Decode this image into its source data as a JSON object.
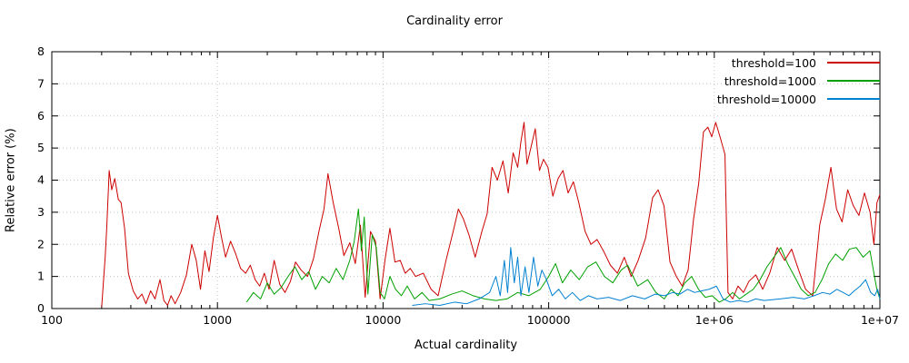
{
  "chart_data": {
    "type": "line",
    "title": "Cardinality error",
    "xlabel": "Actual cardinality",
    "ylabel": "Relative error (%)",
    "xscale": "log",
    "xlim": [
      100,
      10000000
    ],
    "ylim": [
      0,
      8
    ],
    "grid": true,
    "legend_position": "top-right",
    "axis_color": "#000000",
    "grid_color": "#c8c8c8",
    "xticks": {
      "values": [
        100,
        1000,
        10000,
        100000,
        1000000,
        10000000
      ],
      "labels": [
        "100",
        "1000",
        "10000",
        "100000",
        "1e+06",
        "1e+07"
      ]
    },
    "yticks": {
      "values": [
        0,
        1,
        2,
        3,
        4,
        5,
        6,
        7,
        8
      ],
      "labels": [
        "0",
        "1",
        "2",
        "3",
        "4",
        "5",
        "6",
        "7",
        "8"
      ]
    },
    "series": [
      {
        "name": "threshold=100",
        "color": "#cc0000",
        "points": [
          [
            200,
            0.05
          ],
          [
            210,
            1.6
          ],
          [
            215,
            2.6
          ],
          [
            222,
            4.3
          ],
          [
            230,
            3.7
          ],
          [
            240,
            4.05
          ],
          [
            252,
            3.4
          ],
          [
            262,
            3.3
          ],
          [
            275,
            2.5
          ],
          [
            290,
            1.1
          ],
          [
            310,
            0.55
          ],
          [
            330,
            0.3
          ],
          [
            350,
            0.45
          ],
          [
            370,
            0.15
          ],
          [
            395,
            0.55
          ],
          [
            420,
            0.3
          ],
          [
            450,
            0.9
          ],
          [
            475,
            0.25
          ],
          [
            500,
            0.1
          ],
          [
            525,
            0.4
          ],
          [
            555,
            0.15
          ],
          [
            600,
            0.5
          ],
          [
            650,
            1.05
          ],
          [
            700,
            2.0
          ],
          [
            745,
            1.5
          ],
          [
            790,
            0.6
          ],
          [
            840,
            1.8
          ],
          [
            890,
            1.15
          ],
          [
            945,
            2.2
          ],
          [
            1000,
            2.9
          ],
          [
            1060,
            2.2
          ],
          [
            1120,
            1.6
          ],
          [
            1200,
            2.1
          ],
          [
            1290,
            1.7
          ],
          [
            1380,
            1.25
          ],
          [
            1480,
            1.1
          ],
          [
            1580,
            1.35
          ],
          [
            1690,
            0.9
          ],
          [
            1800,
            0.7
          ],
          [
            1920,
            1.1
          ],
          [
            2050,
            0.6
          ],
          [
            2200,
            1.5
          ],
          [
            2380,
            0.75
          ],
          [
            2560,
            0.5
          ],
          [
            2760,
            0.85
          ],
          [
            2960,
            1.45
          ],
          [
            3200,
            1.2
          ],
          [
            3500,
            1.0
          ],
          [
            3800,
            1.55
          ],
          [
            4100,
            2.4
          ],
          [
            4400,
            3.1
          ],
          [
            4650,
            4.2
          ],
          [
            5000,
            3.3
          ],
          [
            5400,
            2.5
          ],
          [
            5800,
            1.65
          ],
          [
            6300,
            2.05
          ],
          [
            6800,
            1.4
          ],
          [
            7300,
            2.6
          ],
          [
            7800,
            0.35
          ],
          [
            8400,
            2.4
          ],
          [
            9000,
            2.1
          ],
          [
            9600,
            0.3
          ],
          [
            10300,
            1.55
          ],
          [
            11000,
            2.5
          ],
          [
            11800,
            1.45
          ],
          [
            12700,
            1.5
          ],
          [
            13600,
            1.1
          ],
          [
            14600,
            1.25
          ],
          [
            15700,
            1.0
          ],
          [
            17500,
            1.1
          ],
          [
            19500,
            0.6
          ],
          [
            21500,
            0.4
          ],
          [
            24000,
            1.5
          ],
          [
            26500,
            2.4
          ],
          [
            28500,
            3.1
          ],
          [
            30500,
            2.8
          ],
          [
            33000,
            2.3
          ],
          [
            36000,
            1.6
          ],
          [
            39500,
            2.4
          ],
          [
            42500,
            2.95
          ],
          [
            45500,
            4.4
          ],
          [
            49000,
            4.0
          ],
          [
            53000,
            4.6
          ],
          [
            57000,
            3.6
          ],
          [
            61000,
            4.85
          ],
          [
            65000,
            4.4
          ],
          [
            68000,
            5.2
          ],
          [
            71000,
            5.8
          ],
          [
            74000,
            4.5
          ],
          [
            78000,
            5.0
          ],
          [
            83000,
            5.6
          ],
          [
            88000,
            4.3
          ],
          [
            93000,
            4.65
          ],
          [
            99000,
            4.4
          ],
          [
            106000,
            3.5
          ],
          [
            114000,
            4.05
          ],
          [
            122000,
            4.3
          ],
          [
            131000,
            3.6
          ],
          [
            141000,
            3.95
          ],
          [
            152000,
            3.3
          ],
          [
            166000,
            2.4
          ],
          [
            180000,
            2.0
          ],
          [
            196000,
            2.15
          ],
          [
            214000,
            1.8
          ],
          [
            236000,
            1.35
          ],
          [
            260000,
            1.1
          ],
          [
            286000,
            1.6
          ],
          [
            315000,
            1.0
          ],
          [
            347000,
            1.5
          ],
          [
            385000,
            2.2
          ],
          [
            424000,
            3.45
          ],
          [
            458000,
            3.7
          ],
          [
            497000,
            3.2
          ],
          [
            540000,
            1.45
          ],
          [
            590000,
            1.0
          ],
          [
            640000,
            0.7
          ],
          [
            695000,
            1.2
          ],
          [
            750000,
            2.8
          ],
          [
            805000,
            3.9
          ],
          [
            860000,
            5.5
          ],
          [
            915000,
            5.65
          ],
          [
            965000,
            5.35
          ],
          [
            1020000,
            5.8
          ],
          [
            1090000,
            5.3
          ],
          [
            1160000,
            4.8
          ],
          [
            1210000,
            0.5
          ],
          [
            1290000,
            0.3
          ],
          [
            1390000,
            0.7
          ],
          [
            1500000,
            0.5
          ],
          [
            1620000,
            0.85
          ],
          [
            1780000,
            1.05
          ],
          [
            1960000,
            0.6
          ],
          [
            2160000,
            1.1
          ],
          [
            2400000,
            1.9
          ],
          [
            2660000,
            1.5
          ],
          [
            2930000,
            1.85
          ],
          [
            3230000,
            1.2
          ],
          [
            3560000,
            0.6
          ],
          [
            3930000,
            0.4
          ],
          [
            4330000,
            2.6
          ],
          [
            4680000,
            3.4
          ],
          [
            5060000,
            4.4
          ],
          [
            5470000,
            3.1
          ],
          [
            5910000,
            2.7
          ],
          [
            6390000,
            3.7
          ],
          [
            6910000,
            3.2
          ],
          [
            7470000,
            2.9
          ],
          [
            8070000,
            3.6
          ],
          [
            8720000,
            3.0
          ],
          [
            9200000,
            2.0
          ],
          [
            9600000,
            3.3
          ],
          [
            10000000,
            3.55
          ]
        ]
      },
      {
        "name": "threshold=1000",
        "color": "#00a000",
        "points": [
          [
            1500,
            0.2
          ],
          [
            1650,
            0.5
          ],
          [
            1820,
            0.3
          ],
          [
            2000,
            0.8
          ],
          [
            2200,
            0.45
          ],
          [
            2420,
            0.65
          ],
          [
            2670,
            1.0
          ],
          [
            2940,
            1.3
          ],
          [
            3230,
            0.9
          ],
          [
            3560,
            1.15
          ],
          [
            3910,
            0.6
          ],
          [
            4300,
            1.0
          ],
          [
            4730,
            0.8
          ],
          [
            5210,
            1.25
          ],
          [
            5730,
            0.9
          ],
          [
            6300,
            1.5
          ],
          [
            6700,
            2.1
          ],
          [
            7100,
            3.1
          ],
          [
            7400,
            1.8
          ],
          [
            7700,
            2.85
          ],
          [
            8100,
            0.45
          ],
          [
            8600,
            2.3
          ],
          [
            9100,
            1.9
          ],
          [
            9600,
            0.5
          ],
          [
            10200,
            0.3
          ],
          [
            11000,
            1.0
          ],
          [
            11900,
            0.6
          ],
          [
            12900,
            0.4
          ],
          [
            14000,
            0.7
          ],
          [
            15500,
            0.3
          ],
          [
            17200,
            0.5
          ],
          [
            19000,
            0.25
          ],
          [
            22000,
            0.3
          ],
          [
            26000,
            0.45
          ],
          [
            30000,
            0.55
          ],
          [
            35000,
            0.4
          ],
          [
            41000,
            0.3
          ],
          [
            48000,
            0.25
          ],
          [
            56000,
            0.3
          ],
          [
            65000,
            0.5
          ],
          [
            76000,
            0.4
          ],
          [
            89000,
            0.6
          ],
          [
            100000,
            1.0
          ],
          [
            110000,
            1.4
          ],
          [
            121000,
            0.8
          ],
          [
            136000,
            1.2
          ],
          [
            153000,
            0.9
          ],
          [
            172000,
            1.3
          ],
          [
            193000,
            1.45
          ],
          [
            217000,
            1.0
          ],
          [
            244000,
            0.8
          ],
          [
            274000,
            1.2
          ],
          [
            300000,
            1.35
          ],
          [
            345000,
            0.7
          ],
          [
            396000,
            0.9
          ],
          [
            444000,
            0.5
          ],
          [
            499000,
            0.3
          ],
          [
            549000,
            0.6
          ],
          [
            604000,
            0.4
          ],
          [
            664000,
            0.8
          ],
          [
            730000,
            1.0
          ],
          [
            803000,
            0.6
          ],
          [
            883000,
            0.35
          ],
          [
            971000,
            0.4
          ],
          [
            1070000,
            0.2
          ],
          [
            1170000,
            0.3
          ],
          [
            1290000,
            0.5
          ],
          [
            1420000,
            0.3
          ],
          [
            1560000,
            0.45
          ],
          [
            1720000,
            0.6
          ],
          [
            1890000,
            0.9
          ],
          [
            2080000,
            1.3
          ],
          [
            2290000,
            1.6
          ],
          [
            2520000,
            1.9
          ],
          [
            2770000,
            1.4
          ],
          [
            3050000,
            1.0
          ],
          [
            3350000,
            0.6
          ],
          [
            3690000,
            0.4
          ],
          [
            4060000,
            0.5
          ],
          [
            4470000,
            0.9
          ],
          [
            4910000,
            1.4
          ],
          [
            5400000,
            1.7
          ],
          [
            5950000,
            1.5
          ],
          [
            6540000,
            1.85
          ],
          [
            7200000,
            1.9
          ],
          [
            7920000,
            1.6
          ],
          [
            8710000,
            1.8
          ],
          [
            9200000,
            1.1
          ],
          [
            9580000,
            0.6
          ],
          [
            10000000,
            0.3
          ]
        ]
      },
      {
        "name": "threshold=10000",
        "color": "#0080d0",
        "points": [
          [
            15000,
            0.1
          ],
          [
            18000,
            0.15
          ],
          [
            22000,
            0.1
          ],
          [
            27000,
            0.2
          ],
          [
            32000,
            0.15
          ],
          [
            38000,
            0.3
          ],
          [
            44000,
            0.5
          ],
          [
            48000,
            1.0
          ],
          [
            51000,
            0.4
          ],
          [
            54000,
            1.5
          ],
          [
            56500,
            0.5
          ],
          [
            59000,
            1.9
          ],
          [
            62000,
            0.8
          ],
          [
            65000,
            1.6
          ],
          [
            68000,
            0.4
          ],
          [
            72000,
            1.3
          ],
          [
            76000,
            0.5
          ],
          [
            81000,
            1.6
          ],
          [
            86000,
            0.7
          ],
          [
            91000,
            1.2
          ],
          [
            97000,
            0.9
          ],
          [
            105000,
            0.4
          ],
          [
            115000,
            0.6
          ],
          [
            126000,
            0.3
          ],
          [
            139000,
            0.5
          ],
          [
            155000,
            0.25
          ],
          [
            174000,
            0.4
          ],
          [
            196000,
            0.3
          ],
          [
            230000,
            0.35
          ],
          [
            270000,
            0.25
          ],
          [
            320000,
            0.4
          ],
          [
            380000,
            0.3
          ],
          [
            440000,
            0.45
          ],
          [
            500000,
            0.4
          ],
          [
            560000,
            0.5
          ],
          [
            620000,
            0.45
          ],
          [
            690000,
            0.6
          ],
          [
            760000,
            0.5
          ],
          [
            840000,
            0.55
          ],
          [
            930000,
            0.6
          ],
          [
            1030000,
            0.7
          ],
          [
            1130000,
            0.3
          ],
          [
            1250000,
            0.2
          ],
          [
            1400000,
            0.25
          ],
          [
            1580000,
            0.2
          ],
          [
            1780000,
            0.3
          ],
          [
            2000000,
            0.25
          ],
          [
            2500000,
            0.3
          ],
          [
            3000000,
            0.35
          ],
          [
            3500000,
            0.3
          ],
          [
            4000000,
            0.4
          ],
          [
            4500000,
            0.5
          ],
          [
            5000000,
            0.45
          ],
          [
            5500000,
            0.6
          ],
          [
            6000000,
            0.5
          ],
          [
            6500000,
            0.4
          ],
          [
            7000000,
            0.55
          ],
          [
            7600000,
            0.7
          ],
          [
            8200000,
            0.9
          ],
          [
            8800000,
            0.5
          ],
          [
            9300000,
            0.4
          ],
          [
            9700000,
            0.6
          ],
          [
            10000000,
            0.3
          ]
        ]
      }
    ]
  }
}
